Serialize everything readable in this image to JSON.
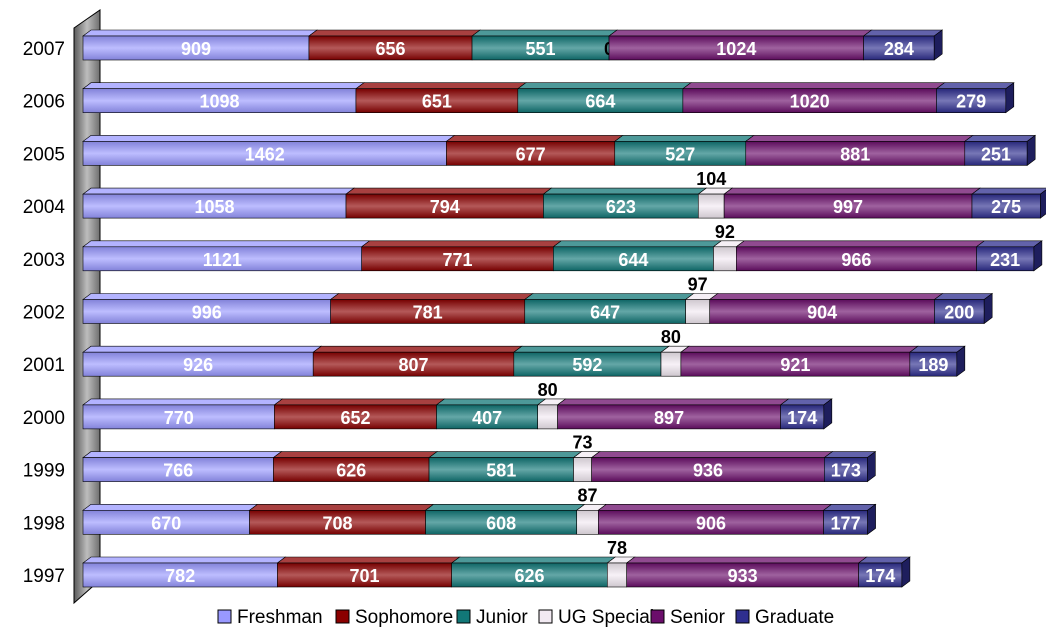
{
  "chart_data": {
    "type": "bar",
    "orientation": "horizontal",
    "stacked": true,
    "title": "",
    "xlabel": "",
    "ylabel": "",
    "legend_position": "bottom",
    "categories": [
      "2007",
      "2006",
      "2005",
      "2004",
      "2003",
      "2002",
      "2001",
      "2000",
      "1999",
      "1998",
      "1997"
    ],
    "series": [
      {
        "name": "Freshman",
        "color": "#9999ff",
        "values": [
          909,
          1098,
          1462,
          1058,
          1121,
          996,
          926,
          770,
          766,
          670,
          782
        ]
      },
      {
        "name": "Sophomore",
        "color": "#8b0000",
        "values": [
          656,
          651,
          677,
          794,
          771,
          781,
          807,
          652,
          626,
          708,
          701
        ]
      },
      {
        "name": "Junior",
        "color": "#117777",
        "values": [
          551,
          664,
          527,
          623,
          644,
          647,
          592,
          407,
          581,
          608,
          626
        ]
      },
      {
        "name": "UG Special",
        "color": "#f2eaf2",
        "values": [
          0,
          null,
          null,
          104,
          92,
          97,
          80,
          80,
          73,
          87,
          78
        ]
      },
      {
        "name": "Senior",
        "color": "#6b0e6b",
        "values": [
          1024,
          1020,
          881,
          997,
          966,
          904,
          921,
          897,
          936,
          906,
          933
        ]
      },
      {
        "name": "Graduate",
        "color": "#2e2e8f",
        "values": [
          284,
          279,
          251,
          275,
          231,
          200,
          189,
          174,
          173,
          177,
          174
        ]
      }
    ]
  }
}
